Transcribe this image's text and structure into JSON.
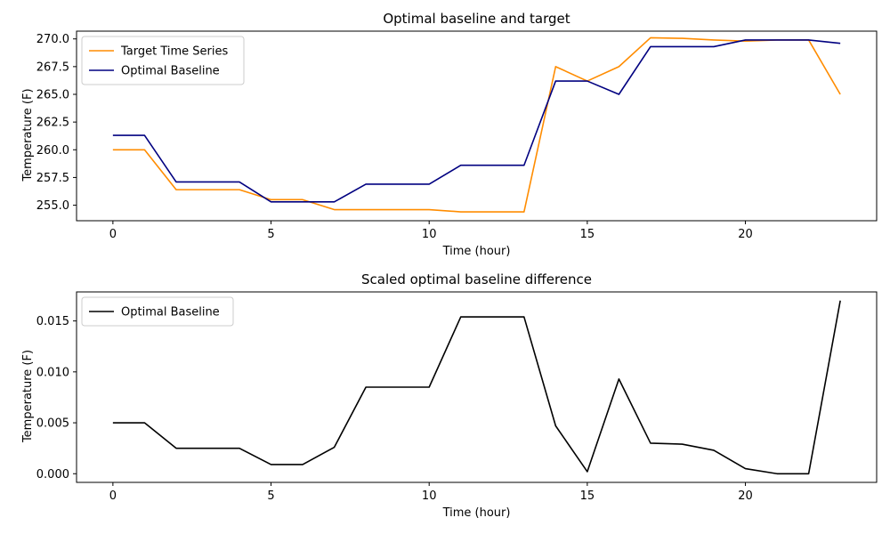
{
  "chart_data": [
    {
      "type": "line",
      "title": "Optimal baseline and target",
      "xlabel": "Time (hour)",
      "ylabel": "Temperature (F)",
      "xlim": [
        -1.15,
        24.15
      ],
      "ylim": [
        253.6,
        270.7
      ],
      "xticks": [
        0,
        5,
        10,
        15,
        20
      ],
      "xtick_labels": [
        "0",
        "5",
        "10",
        "15",
        "20"
      ],
      "yticks": [
        255.0,
        257.5,
        260.0,
        262.5,
        265.0,
        267.5,
        270.0
      ],
      "ytick_labels": [
        "255.0",
        "257.5",
        "260.0",
        "262.5",
        "265.0",
        "267.5",
        "270.0"
      ],
      "legend_position": "upper-left",
      "grid": false,
      "x": [
        0,
        1,
        2,
        3,
        4,
        5,
        6,
        7,
        8,
        9,
        10,
        11,
        12,
        13,
        14,
        15,
        16,
        17,
        18,
        19,
        20,
        21,
        22,
        23
      ],
      "series": [
        {
          "name": "Target Time Series",
          "color": "#ff8c00",
          "values": [
            260.0,
            260.0,
            256.4,
            256.4,
            256.4,
            255.5,
            255.5,
            254.6,
            254.6,
            254.6,
            254.6,
            254.4,
            254.4,
            254.4,
            267.5,
            266.2,
            267.5,
            270.1,
            270.05,
            269.9,
            269.8,
            269.9,
            269.9,
            265.0
          ]
        },
        {
          "name": "Optimal Baseline",
          "color": "#000080",
          "values": [
            261.3,
            261.3,
            257.1,
            257.1,
            257.1,
            255.3,
            255.3,
            255.3,
            256.9,
            256.9,
            256.9,
            258.6,
            258.6,
            258.6,
            266.2,
            266.2,
            265.0,
            269.3,
            269.3,
            269.3,
            269.9,
            269.9,
            269.9,
            269.6
          ]
        }
      ]
    },
    {
      "type": "line",
      "title": "Scaled optimal baseline difference",
      "xlabel": "Time (hour)",
      "ylabel": "Temperature (F)",
      "xlim": [
        -1.15,
        24.15
      ],
      "ylim": [
        -0.00085,
        0.01785
      ],
      "xticks": [
        0,
        5,
        10,
        15,
        20
      ],
      "xtick_labels": [
        "0",
        "5",
        "10",
        "15",
        "20"
      ],
      "yticks": [
        0.0,
        0.005,
        0.01,
        0.015
      ],
      "ytick_labels": [
        "0.000",
        "0.005",
        "0.010",
        "0.015"
      ],
      "legend_position": "upper-left",
      "grid": false,
      "x": [
        0,
        1,
        2,
        3,
        4,
        5,
        6,
        7,
        8,
        9,
        10,
        11,
        12,
        13,
        14,
        15,
        16,
        17,
        18,
        19,
        20,
        21,
        22,
        23
      ],
      "series": [
        {
          "name": "Optimal Baseline",
          "color": "#000000",
          "values": [
            0.005,
            0.005,
            0.0025,
            0.0025,
            0.0025,
            0.0009,
            0.0009,
            0.0026,
            0.0085,
            0.0085,
            0.0085,
            0.0154,
            0.0154,
            0.0154,
            0.0047,
            0.0002,
            0.0093,
            0.003,
            0.0029,
            0.0023,
            0.0005,
            0.0,
            0.0,
            0.017
          ]
        }
      ]
    }
  ]
}
